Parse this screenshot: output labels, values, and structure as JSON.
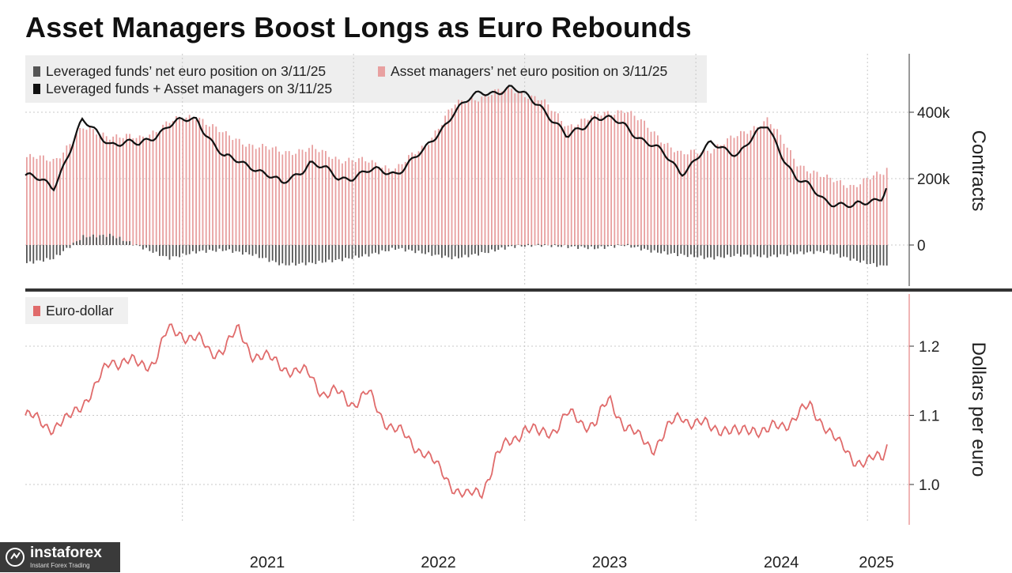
{
  "title": "Asset Managers Boost Longs as Euro Rebounds",
  "watermark": {
    "name": "instaforex",
    "tagline": "Instant Forex Trading",
    "icon": "instaforex-logo-icon"
  },
  "colors": {
    "leveraged": "#555555",
    "asset_managers": "#e8a0a0",
    "combined": "#111111",
    "eurusd": "#e06b6b",
    "grid": "#c8c8c8"
  },
  "chart_data": [
    {
      "type": "bar",
      "title": "",
      "ylabel": "Contracts",
      "yticks": [
        "0",
        "200k",
        "400k"
      ],
      "ytick_values": [
        0,
        200000,
        400000
      ],
      "ylim": [
        -120000,
        560000
      ],
      "xlim": [
        "2020-02-01",
        "2025-03-31"
      ],
      "grid": true,
      "legend_position": "top-left",
      "legend": [
        "Leveraged funds’ net euro position on 3/11/25",
        "Asset managers’ net euro position on 3/11/25",
        "Leveraged funds + Asset managers on 3/11/25"
      ],
      "series": [
        {
          "name": "Leveraged funds’ net euro position on 3/11/25",
          "style": "bar",
          "x": [
            "2020-02",
            "2020-04",
            "2020-06",
            "2020-08",
            "2020-10",
            "2020-12",
            "2021-02",
            "2021-04",
            "2021-06",
            "2021-08",
            "2021-10",
            "2021-12",
            "2022-02",
            "2022-04",
            "2022-06",
            "2022-08",
            "2022-10",
            "2022-12",
            "2023-02",
            "2023-04",
            "2023-06",
            "2023-08",
            "2023-10",
            "2023-12",
            "2024-02",
            "2024-04",
            "2024-06",
            "2024-08",
            "2024-10",
            "2024-12",
            "2025-02",
            "2025-03"
          ],
          "values": [
            -55000,
            -40000,
            25000,
            30000,
            -5000,
            -40000,
            -20000,
            -15000,
            -30000,
            -60000,
            -55000,
            -45000,
            -30000,
            -10000,
            -25000,
            -40000,
            -25000,
            -5000,
            0,
            -5000,
            -10000,
            0,
            -20000,
            -30000,
            -40000,
            -30000,
            -35000,
            -25000,
            -20000,
            -45000,
            -65000,
            -40000
          ]
        },
        {
          "name": "Asset managers’ net euro position on 3/11/25",
          "style": "bar",
          "x": [
            "2020-02",
            "2020-04",
            "2020-06",
            "2020-08",
            "2020-10",
            "2020-12",
            "2021-02",
            "2021-04",
            "2021-06",
            "2021-08",
            "2021-10",
            "2021-12",
            "2022-02",
            "2022-04",
            "2022-06",
            "2022-08",
            "2022-10",
            "2022-12",
            "2023-02",
            "2023-04",
            "2023-06",
            "2023-08",
            "2023-10",
            "2023-12",
            "2024-02",
            "2024-04",
            "2024-06",
            "2024-08",
            "2024-10",
            "2024-12",
            "2025-02",
            "2025-03"
          ],
          "values": [
            265000,
            255000,
            350000,
            330000,
            320000,
            370000,
            390000,
            330000,
            300000,
            280000,
            290000,
            260000,
            250000,
            230000,
            300000,
            420000,
            450000,
            470000,
            440000,
            360000,
            390000,
            410000,
            340000,
            270000,
            290000,
            330000,
            380000,
            250000,
            200000,
            180000,
            215000,
            265000
          ]
        },
        {
          "name": "Leveraged funds + Asset managers on 3/11/25",
          "style": "line",
          "x": [
            "2020-02",
            "2020-04",
            "2020-06",
            "2020-08",
            "2020-10",
            "2020-12",
            "2021-02",
            "2021-04",
            "2021-06",
            "2021-08",
            "2021-10",
            "2021-12",
            "2022-02",
            "2022-04",
            "2022-06",
            "2022-08",
            "2022-10",
            "2022-12",
            "2023-02",
            "2023-04",
            "2023-06",
            "2023-08",
            "2023-10",
            "2023-12",
            "2024-02",
            "2024-04",
            "2024-06",
            "2024-08",
            "2024-10",
            "2024-12",
            "2025-02",
            "2025-03"
          ],
          "values": [
            210000,
            175000,
            370000,
            310000,
            300000,
            360000,
            380000,
            260000,
            240000,
            180000,
            250000,
            200000,
            220000,
            220000,
            280000,
            400000,
            460000,
            470000,
            430000,
            320000,
            390000,
            360000,
            300000,
            220000,
            300000,
            280000,
            360000,
            200000,
            140000,
            110000,
            150000,
            230000
          ]
        }
      ]
    },
    {
      "type": "line",
      "title": "",
      "ylabel": "Dollars per euro",
      "yticks": [
        "1.0",
        "1.1",
        "1.2"
      ],
      "ytick_values": [
        1.0,
        1.1,
        1.2
      ],
      "ylim": [
        0.94,
        1.28
      ],
      "xlim": [
        "2020-02-01",
        "2025-03-31"
      ],
      "xticks": [
        "2021",
        "2022",
        "2023",
        "2024",
        "2025"
      ],
      "grid": true,
      "legend_position": "top-left",
      "legend": [
        "Euro-dollar"
      ],
      "series": [
        {
          "name": "Euro-dollar",
          "x": [
            "2020-02",
            "2020-03",
            "2020-04",
            "2020-05",
            "2020-06",
            "2020-07",
            "2020-08",
            "2020-09",
            "2020-10",
            "2020-11",
            "2020-12",
            "2021-01",
            "2021-02",
            "2021-03",
            "2021-04",
            "2021-05",
            "2021-06",
            "2021-07",
            "2021-08",
            "2021-09",
            "2021-10",
            "2021-11",
            "2021-12",
            "2022-01",
            "2022-02",
            "2022-03",
            "2022-04",
            "2022-05",
            "2022-06",
            "2022-07",
            "2022-08",
            "2022-09",
            "2022-10",
            "2022-11",
            "2022-12",
            "2023-01",
            "2023-02",
            "2023-03",
            "2023-04",
            "2023-05",
            "2023-06",
            "2023-07",
            "2023-08",
            "2023-09",
            "2023-10",
            "2023-12",
            "2024-01",
            "2024-02",
            "2024-03",
            "2024-04",
            "2024-05",
            "2024-06",
            "2024-07",
            "2024-08",
            "2024-09",
            "2024-10",
            "2024-11",
            "2024-12",
            "2025-01",
            "2025-02",
            "2025-03"
          ],
          "values": [
            1.1,
            1.09,
            1.085,
            1.09,
            1.12,
            1.14,
            1.18,
            1.18,
            1.17,
            1.18,
            1.22,
            1.22,
            1.21,
            1.19,
            1.2,
            1.22,
            1.19,
            1.18,
            1.175,
            1.16,
            1.16,
            1.13,
            1.13,
            1.12,
            1.13,
            1.1,
            1.08,
            1.06,
            1.05,
            1.02,
            1.0,
            0.98,
            0.99,
            1.04,
            1.06,
            1.085,
            1.07,
            1.08,
            1.1,
            1.09,
            1.09,
            1.12,
            1.09,
            1.065,
            1.055,
            1.1,
            1.09,
            1.08,
            1.085,
            1.07,
            1.085,
            1.075,
            1.085,
            1.1,
            1.11,
            1.09,
            1.055,
            1.04,
            1.03,
            1.04,
            1.09
          ]
        }
      ]
    }
  ]
}
